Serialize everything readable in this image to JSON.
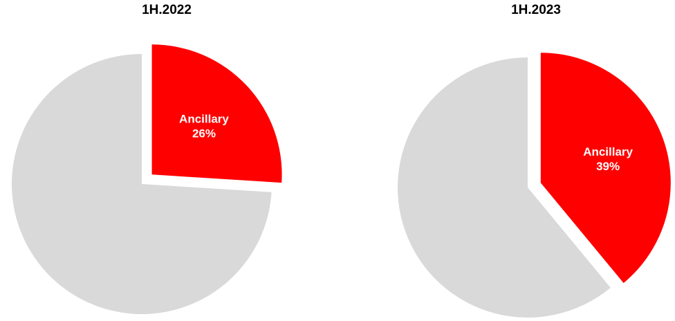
{
  "chart_data": [
    {
      "type": "pie",
      "title": "1H.2022",
      "slices": [
        {
          "label": "Ancillary",
          "value": 26,
          "value_label": "26%",
          "color": "#ff0000",
          "exploded": true
        },
        {
          "label": "",
          "value": 74,
          "value_label": "",
          "color": "#d9d9d9",
          "exploded": false
        }
      ]
    },
    {
      "type": "pie",
      "title": "1H.2023",
      "slices": [
        {
          "label": "Ancillary",
          "value": 39,
          "value_label": "39%",
          "color": "#ff0000",
          "exploded": true
        },
        {
          "label": "",
          "value": 61,
          "value_label": "",
          "color": "#d9d9d9",
          "exploded": false
        }
      ]
    }
  ]
}
